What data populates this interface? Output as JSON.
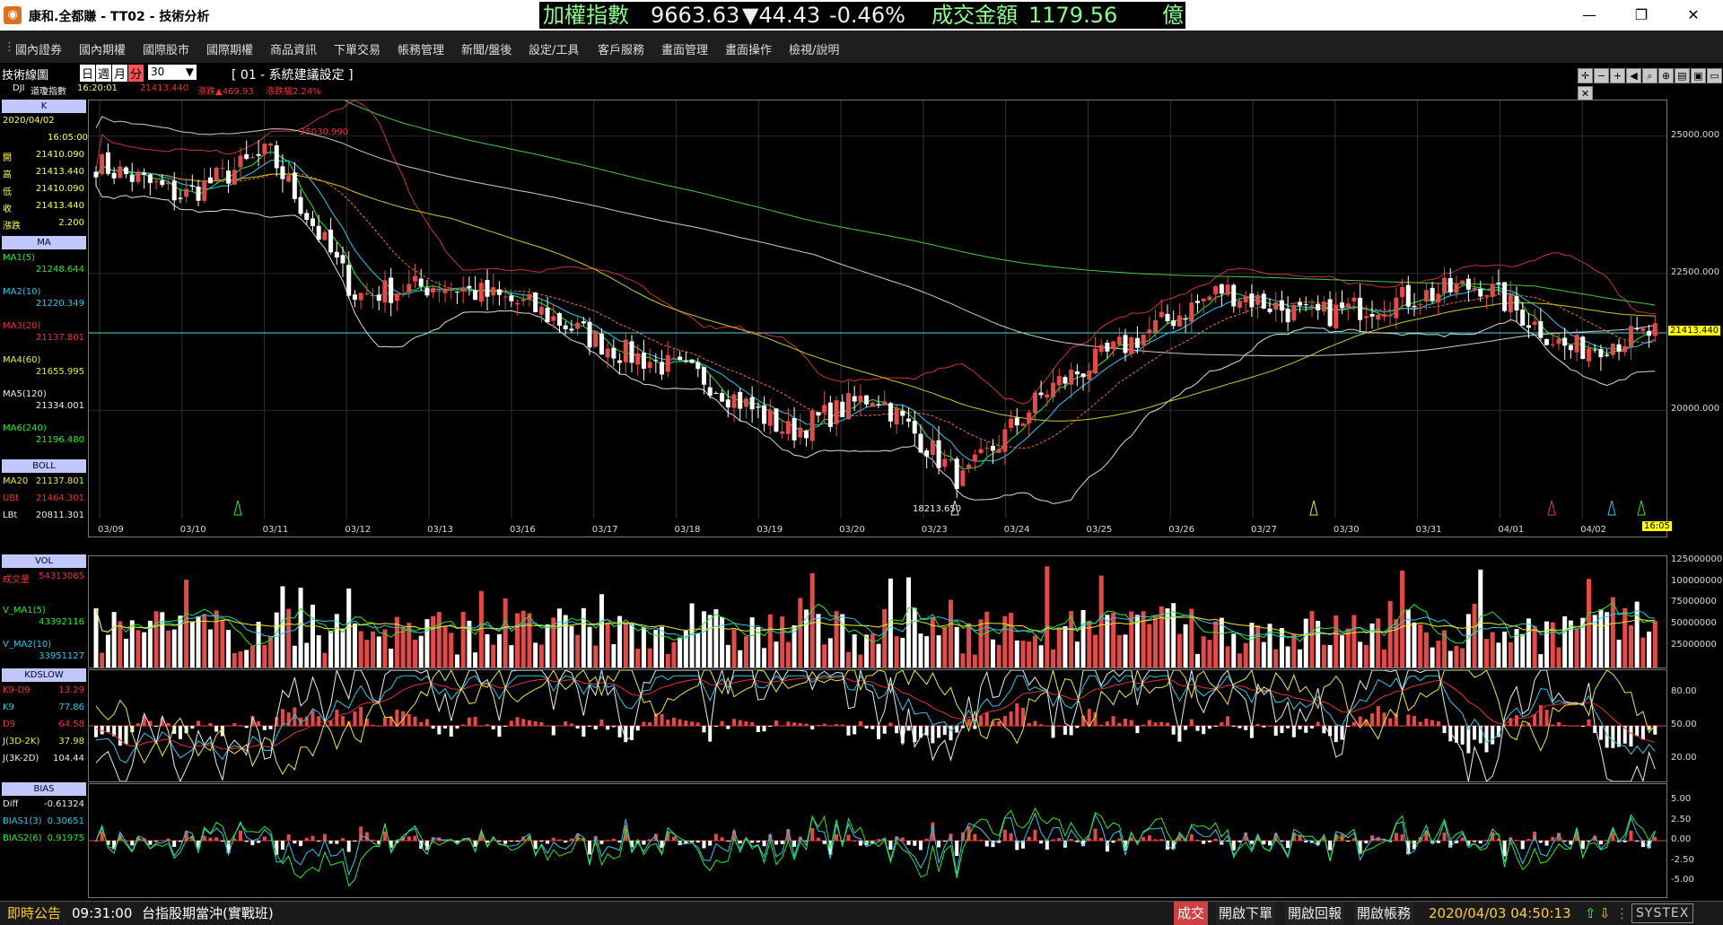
{
  "window": {
    "title": "康和.全都賺 - TT02 - 技術分析",
    "icon": "app-logo-icon",
    "controls": {
      "minimize": "—",
      "restore": "❐",
      "close": "✕"
    }
  },
  "ticker": {
    "index_name": "加權指數",
    "index_value": "9663.63",
    "change": "▼44.43",
    "change_pct": "-0.46%",
    "turnover_label": "成交金額",
    "turnover_value": "1179.56",
    "turnover_unit": "億"
  },
  "menu": [
    "國內證券",
    "國內期權",
    "國際股市",
    "國際期權",
    "商品資訊",
    "下單交易",
    "帳務管理",
    "新聞/盤後",
    "設定/工具",
    "客戶服務",
    "畫面管理",
    "畫面操作",
    "檢視/說明"
  ],
  "chart_header": {
    "title": "技術線圖",
    "periods": [
      "日",
      "週",
      "月",
      "分"
    ],
    "active_period": "分",
    "interval": "30",
    "preset": "[ 01 - 系統建議設定 ]",
    "symbol": "DJI",
    "symbol_name": "道瓊指數",
    "time": "16:20:01",
    "price": "21413.440",
    "change": "漲跌▲469.93",
    "change_pct": "漲跌幅2.24%"
  },
  "info_panel": {
    "k": {
      "head": "K",
      "date": "2020/04/02",
      "time": "16:05:00",
      "rows": [
        {
          "label": "開",
          "value": "21410.090"
        },
        {
          "label": "高",
          "value": "21413.440"
        },
        {
          "label": "低",
          "value": "21410.090"
        },
        {
          "label": "收",
          "value": "21413.440"
        },
        {
          "label": "漲跌",
          "value": "2.200"
        }
      ]
    },
    "ma": {
      "head": "MA",
      "rows": [
        {
          "label": "MA1(5)",
          "value": "21248.644",
          "color": "#22ee22"
        },
        {
          "label": "MA2(10)",
          "value": "21220.349",
          "color": "#22ccee"
        },
        {
          "label": "MA3(20)",
          "value": "21137.801",
          "color": "#ee3333"
        },
        {
          "label": "MA4(60)",
          "value": "21655.995",
          "color": "#eeee22"
        },
        {
          "label": "MA5(120)",
          "value": "21334.001",
          "color": "#eeeeee"
        },
        {
          "label": "MA6(240)",
          "value": "21196.480",
          "color": "#22ee22"
        }
      ]
    },
    "boll": {
      "head": "BOLL",
      "rows": [
        {
          "label": "MA20",
          "value": "21137.801",
          "color": "#eeee22"
        },
        {
          "label": "UBt",
          "value": "21464.301",
          "color": "#ee3333"
        },
        {
          "label": "LBt",
          "value": "20811.301",
          "color": "#eeeeee"
        }
      ]
    },
    "vol": {
      "head": "VOL",
      "rows": [
        {
          "label": "成交量",
          "value": "54313085",
          "color": "#ee3333"
        },
        {
          "label": "V_MA1(5)",
          "value": "43392116",
          "color": "#22ee22"
        },
        {
          "label": "V_MA2(10)",
          "value": "33951127",
          "color": "#22ccee"
        }
      ]
    },
    "kd": {
      "head": "KDSLOW",
      "rows": [
        {
          "label": "K9-D9",
          "value": "13.29",
          "color": "#ee3333"
        },
        {
          "label": "K9",
          "value": "77.86",
          "color": "#22ccee"
        },
        {
          "label": "D9",
          "value": "64.58",
          "color": "#ee3333"
        },
        {
          "label": "J(3D-2K)",
          "value": "37.98",
          "color": "#eeee22"
        },
        {
          "label": "J(3K-2D)",
          "value": "104.44",
          "color": "#eeeeee"
        }
      ]
    },
    "bias": {
      "head": "BIAS",
      "rows": [
        {
          "label": "Diff",
          "value": "-0.61324",
          "color": "#eeeeee"
        },
        {
          "label": "BIAS1(3)",
          "value": "0.30651",
          "color": "#22ccee"
        },
        {
          "label": "BIAS2(6)",
          "value": "0.91975",
          "color": "#22ee22"
        }
      ]
    }
  },
  "annotations": {
    "high": "25030.990",
    "low": "18213.650",
    "last_price": "21413.440",
    "last_time": "16:05"
  },
  "chart_data": [
    {
      "type": "candlestick",
      "title": "K",
      "x_tick_labels": [
        "03/09",
        "03/10",
        "03/11",
        "03/12",
        "03/13",
        "03/16",
        "03/17",
        "03/18",
        "03/19",
        "03/20",
        "03/23",
        "03/24",
        "03/25",
        "03/26",
        "03/27",
        "03/30",
        "03/31",
        "04/01",
        "04/02"
      ],
      "y_tick_labels": [
        "25000.000",
        "22500.000",
        "20000.000"
      ],
      "ylim": [
        17700,
        25650
      ],
      "close_path": [
        {
          "date": "03/09",
          "close": 24500
        },
        {
          "date": "03/10",
          "close": 23900
        },
        {
          "date": "03/11",
          "close": 24700
        },
        {
          "date": "03/12",
          "close": 22100
        },
        {
          "date": "03/13",
          "close": 22300
        },
        {
          "date": "03/16",
          "close": 21900
        },
        {
          "date": "03/17",
          "close": 21100
        },
        {
          "date": "03/18",
          "close": 20600
        },
        {
          "date": "03/19",
          "close": 19600
        },
        {
          "date": "03/20",
          "close": 20300
        },
        {
          "date": "03/23",
          "close": 18700
        },
        {
          "date": "03/24",
          "close": 20400
        },
        {
          "date": "03/25",
          "close": 21300
        },
        {
          "date": "03/26",
          "close": 22200
        },
        {
          "date": "03/27",
          "close": 21700
        },
        {
          "date": "03/30",
          "close": 22000
        },
        {
          "date": "03/31",
          "close": 22300
        },
        {
          "date": "04/01",
          "close": 21100
        },
        {
          "date": "04/02",
          "close": 21413
        }
      ],
      "series": [
        {
          "name": "MA1(5)",
          "color": "#22ee22"
        },
        {
          "name": "MA2(10)",
          "color": "#22ccee"
        },
        {
          "name": "MA3(20)",
          "color": "#ee3333"
        },
        {
          "name": "MA4(60)",
          "color": "#eeee22"
        },
        {
          "name": "MA5(120)",
          "color": "#eeeeee"
        },
        {
          "name": "MA6(240)",
          "color": "#22ee22"
        }
      ]
    },
    {
      "type": "bar",
      "title": "VOL",
      "y_tick_labels": [
        "125000000",
        "100000000",
        "75000000",
        "50000000",
        "25000000"
      ],
      "ylim": [
        0,
        130000000
      ]
    },
    {
      "type": "line",
      "title": "KDSLOW",
      "y_tick_labels": [
        "80.00",
        "50.00",
        "20.00"
      ],
      "ylim": [
        0,
        100
      ]
    },
    {
      "type": "line",
      "title": "BIAS",
      "y_tick_labels": [
        "5.00",
        "2.50",
        "0.00",
        "-2.50",
        "-5.00"
      ],
      "ylim": [
        -7,
        7
      ]
    }
  ],
  "status": {
    "notice_label": "即時公告",
    "notice_time": "09:31:00",
    "notice_text": "台指股期當沖(實戰班)",
    "trade_button": "成交",
    "order_button": "開啟下單",
    "report_button": "開啟回報",
    "account_button": "開啟帳務",
    "datetime": "2020/04/03 04:50:13",
    "brand": "SYSTEX"
  },
  "colors": {
    "up": "#e84848",
    "down": "#ffffff",
    "accent": "#ffff00",
    "ticker_text": "#88ff88"
  }
}
